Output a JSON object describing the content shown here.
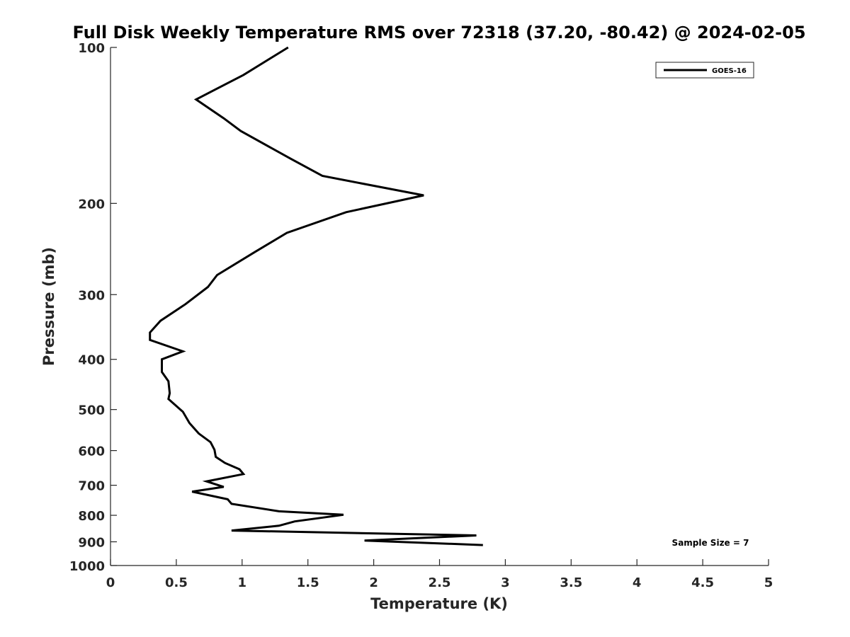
{
  "chart_data": {
    "type": "line",
    "title": "Full Disk Weekly Temperature RMS over 72318 (37.20, -80.42) @ 2024-02-05",
    "xlabel": "Temperature (K)",
    "ylabel": "Pressure (mb)",
    "xlim": [
      0,
      5
    ],
    "ylim": [
      1000,
      100
    ],
    "y_scale": "log",
    "y_reversed": true,
    "x_ticks": [
      "0",
      "0.5",
      "1",
      "1.5",
      "2",
      "2.5",
      "3",
      "3.5",
      "4",
      "4.5",
      "5"
    ],
    "y_ticks": [
      "100",
      "200",
      "300",
      "400",
      "500",
      "600",
      "700",
      "800",
      "900",
      "1000"
    ],
    "grid": false,
    "legend_position": "top-right",
    "annotation": "Sample Size = 7",
    "series": [
      {
        "name": "GOES-16",
        "color": "#000000",
        "x": [
          1.35,
          1.01,
          0.65,
          0.86,
          0.99,
          1.37,
          1.61,
          2.38,
          1.79,
          1.34,
          1.1,
          0.81,
          0.74,
          0.57,
          0.38,
          0.3,
          0.3,
          0.55,
          0.39,
          0.39,
          0.44,
          0.45,
          0.44,
          0.55,
          0.6,
          0.67,
          0.76,
          0.79,
          0.8,
          0.87,
          0.98,
          1.01,
          0.73,
          0.86,
          0.62,
          0.89,
          0.92,
          1.28,
          1.77,
          1.4,
          1.28,
          0.92,
          2.78,
          1.93,
          2.83
        ],
        "y": [
          100,
          113,
          126,
          137,
          145,
          164,
          177,
          193,
          208,
          228,
          248,
          275,
          290,
          313,
          337,
          355,
          367,
          386,
          400,
          423,
          441,
          465,
          477,
          505,
          531,
          556,
          578,
          598,
          617,
          634,
          652,
          666,
          688,
          705,
          720,
          745,
          760,
          786,
          798,
          822,
          838,
          856,
          875,
          895,
          913
        ]
      }
    ]
  }
}
